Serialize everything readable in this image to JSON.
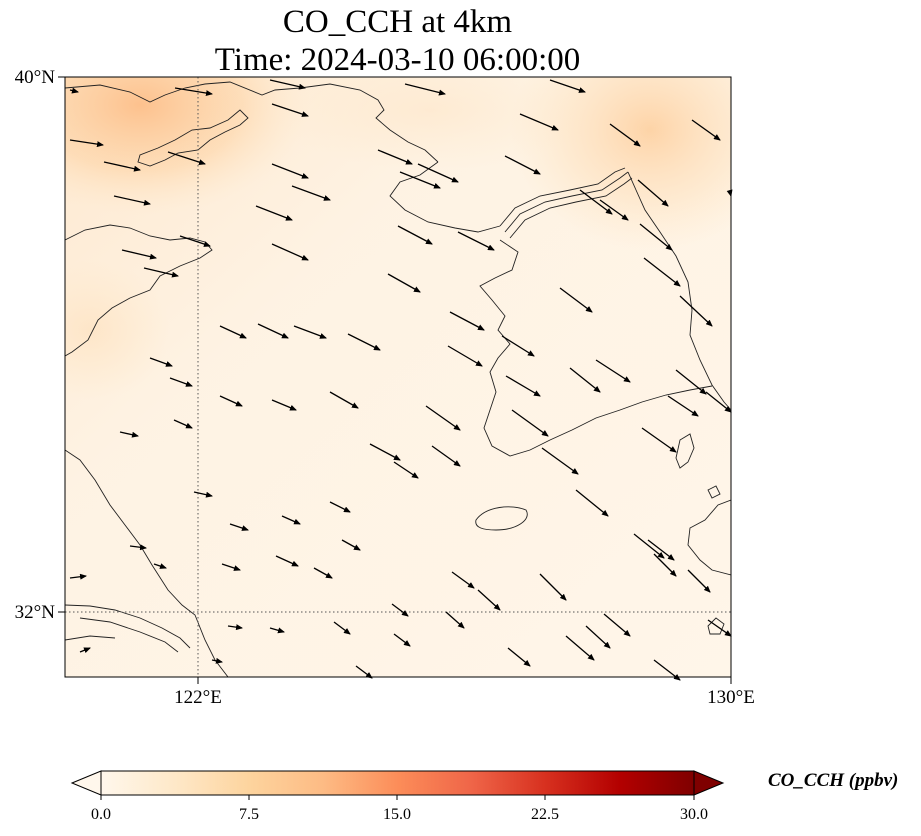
{
  "title": {
    "line1": "CO_CCH at 4km",
    "line2": "Time: 2024-03-10 06:00:00"
  },
  "axes": {
    "lat_labels": [
      "40°N",
      "32°N"
    ],
    "lon_labels": [
      "122°E",
      "130°E"
    ],
    "extent": {
      "lon_min": 120,
      "lon_max": 130,
      "lat_min": 31,
      "lat_max": 40
    },
    "gridlines": {
      "lon": [
        122
      ],
      "lat": [
        32
      ],
      "style": "dotted"
    }
  },
  "colorbar": {
    "label": "CO_CCH (ppbv)",
    "ticks": [
      "0.0",
      "7.5",
      "15.0",
      "22.5",
      "30.0"
    ],
    "range": [
      0,
      30
    ],
    "extend": "both",
    "colormap": "OrRd",
    "colors": [
      "#fff7ec",
      "#fee8c8",
      "#fdd49e",
      "#fdbb84",
      "#fc8d59",
      "#ef6548",
      "#d7301f",
      "#b30000",
      "#7f0000"
    ]
  },
  "chart_data": {
    "type": "heatmap",
    "title": "CO_CCH at 4km\nTime: 2024-03-10 06:00:00",
    "xlabel": "",
    "ylabel": "",
    "xlim": [
      120,
      130
    ],
    "ylim": [
      31,
      40
    ],
    "field_summary": "low CO_CCH (≈1–4 ppbv) over most of the domain, higher values (≈8–10 ppbv) in the northwest corner near 120–122°E 39–40°N and northeast near 128–130°E 38–40°N",
    "wind_vectors_direction": "mostly west-northwest to east-southeast"
  }
}
